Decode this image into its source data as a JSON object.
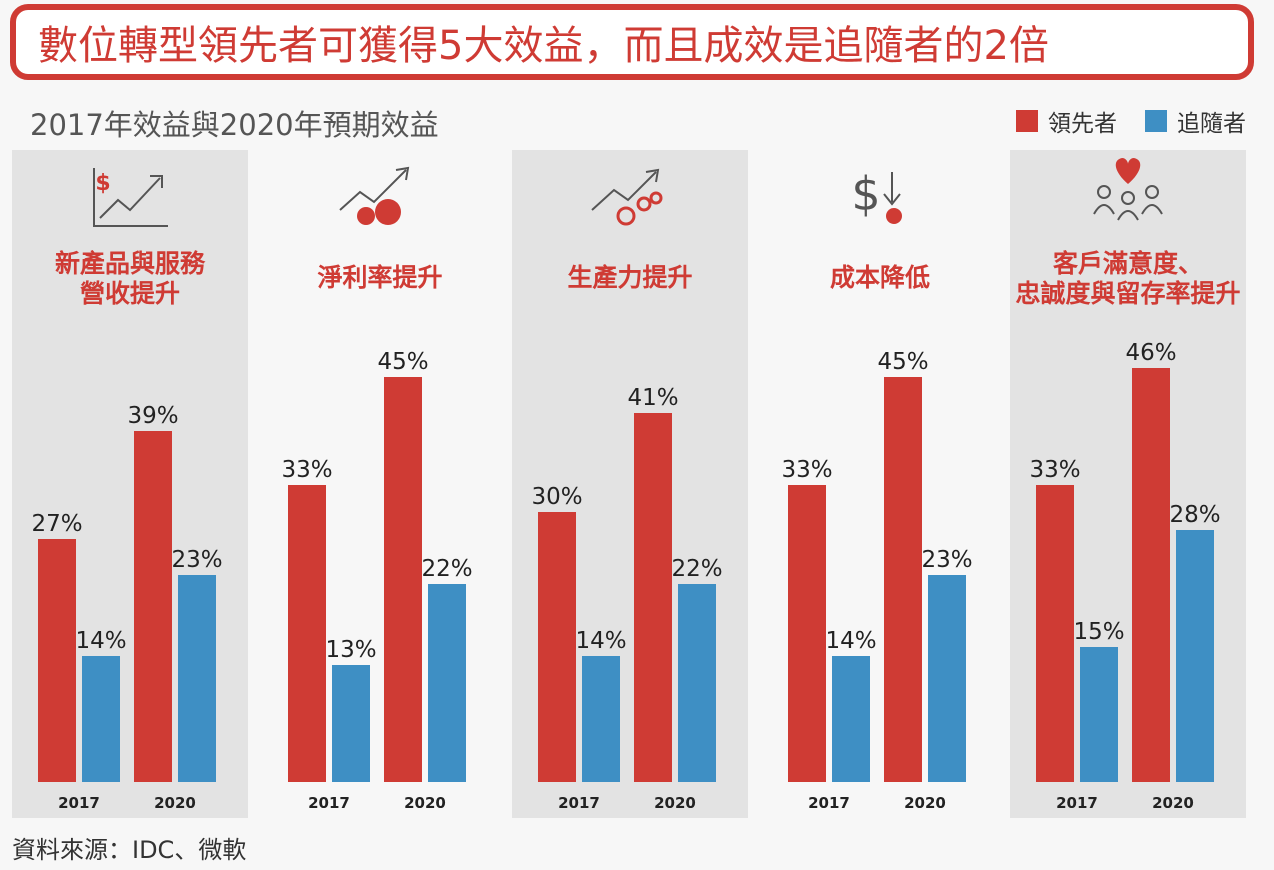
{
  "title": "數位轉型領先者可獲得5大效益，而且成效是追隨者的2倍",
  "subtitle": "2017年效益與2020年預期效益",
  "source": "資料來源：IDC、微軟",
  "colors": {
    "leader": "#cf3b34",
    "follower": "#3e8fc4",
    "panel_bg": "#e3e3e3",
    "accent_text": "#cf3b34"
  },
  "chart_data": {
    "type": "bar",
    "years": [
      "2017",
      "2020"
    ],
    "series": [
      {
        "name": "領先者"
      },
      {
        "name": "追隨者"
      }
    ],
    "unit": "%",
    "ylim": [
      0,
      50
    ],
    "panels": [
      {
        "title_lines": [
          "新產品與服務",
          "營收提升"
        ],
        "icon": "revenue-growth-chart-icon",
        "shaded": true,
        "leader": [
          27,
          39
        ],
        "follower": [
          14,
          23
        ]
      },
      {
        "title_lines": [
          "淨利率提升"
        ],
        "icon": "profit-coins-icon",
        "shaded": false,
        "leader": [
          33,
          45
        ],
        "follower": [
          13,
          22
        ]
      },
      {
        "title_lines": [
          "生產力提升"
        ],
        "icon": "productivity-gears-icon",
        "shaded": true,
        "leader": [
          30,
          41
        ],
        "follower": [
          14,
          22
        ]
      },
      {
        "title_lines": [
          "成本降低"
        ],
        "icon": "cost-down-icon",
        "shaded": false,
        "leader": [
          33,
          45
        ],
        "follower": [
          14,
          23
        ]
      },
      {
        "title_lines": [
          "客戶滿意度、",
          "忠誠度與留存率提升"
        ],
        "icon": "customer-heart-icon",
        "shaded": true,
        "leader": [
          33,
          46
        ],
        "follower": [
          15,
          28
        ]
      }
    ]
  }
}
